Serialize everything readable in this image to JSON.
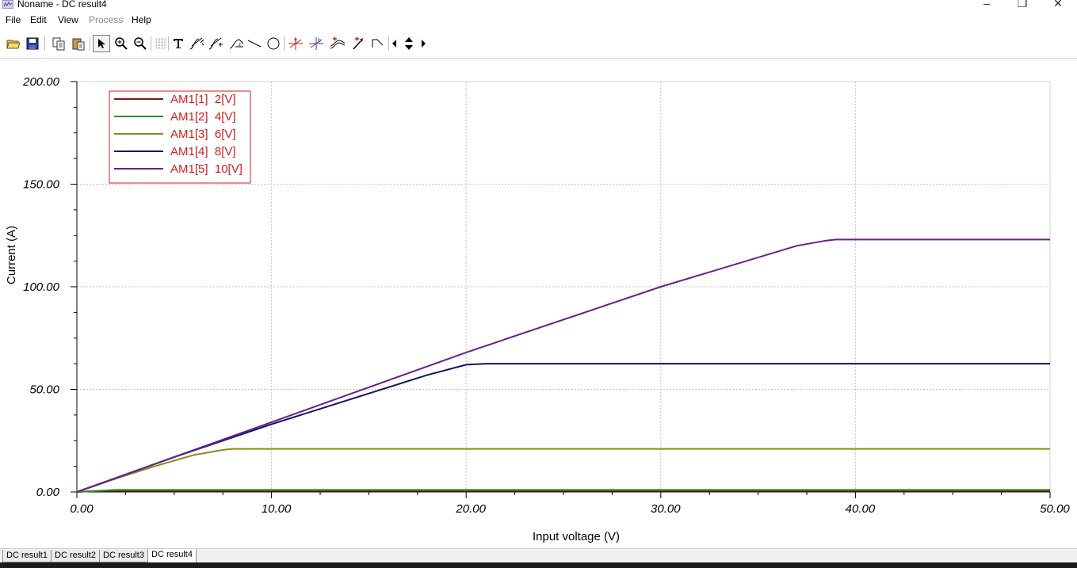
{
  "window": {
    "title": "Noname - DC result4",
    "controls": [
      "–",
      "❐",
      "✕"
    ]
  },
  "menu": [
    {
      "label": "File",
      "enabled": true
    },
    {
      "label": "Edit",
      "enabled": true
    },
    {
      "label": "View",
      "enabled": true
    },
    {
      "label": "Process",
      "enabled": false
    },
    {
      "label": "Help",
      "enabled": true
    }
  ],
  "toolbar": {
    "icons": [
      "open-folder-icon",
      "save-icon",
      "copy-icon",
      "paste-icon",
      "pointer-icon",
      "zoom-in-icon",
      "zoom-out-icon",
      "grid-icon",
      "text-tool-icon",
      "curve-tool-1-icon",
      "curve-tool-2-icon",
      "curve-tool-3-icon",
      "line-tool-icon",
      "circle-tool-icon",
      "marker-a-icon",
      "marker-b-icon",
      "add-trace-icon",
      "probe-icon",
      "slope-icon",
      "arrow-left-icon",
      "arrow-updown-icon",
      "arrow-right-icon"
    ]
  },
  "chart_data": {
    "type": "line",
    "title": "",
    "xlabel": "Input voltage (V)",
    "ylabel": "Current (A)",
    "xlim": [
      0,
      50
    ],
    "ylim": [
      0,
      200
    ],
    "xticks": [
      "0.00",
      "10.00",
      "20.00",
      "30.00",
      "40.00",
      "50.00"
    ],
    "yticks": [
      "0.00",
      "50.00",
      "100.00",
      "150.00",
      "200.00"
    ],
    "grid": true,
    "legend_position": "top-left",
    "series": [
      {
        "name": "AM1[1]  2[V]",
        "color": "#7a1a1a",
        "x": [
          0,
          1,
          50
        ],
        "y": [
          0,
          0.5,
          0.5
        ]
      },
      {
        "name": "AM1[2]  4[V]",
        "color": "#2e8b2e",
        "x": [
          0,
          2,
          50
        ],
        "y": [
          0,
          1,
          1
        ]
      },
      {
        "name": "AM1[3]  6[V]",
        "color": "#8c8c1a",
        "x": [
          0,
          2,
          4,
          6,
          7.5,
          8,
          50
        ],
        "y": [
          0,
          6.5,
          12.5,
          18,
          20.5,
          21,
          21
        ]
      },
      {
        "name": "AM1[4]  8[V]",
        "color": "#14145e",
        "x": [
          0,
          5,
          10,
          15,
          18,
          20,
          21,
          50
        ],
        "y": [
          0,
          17,
          33,
          48,
          57,
          62,
          62.5,
          62.5
        ]
      },
      {
        "name": "AM1[5]  10[V]",
        "color": "#6a1f8a",
        "x": [
          0,
          10,
          20,
          30,
          37,
          38.5,
          39,
          50
        ],
        "y": [
          0,
          34,
          68,
          100,
          120,
          122.5,
          123,
          123
        ]
      }
    ]
  },
  "tabs": [
    {
      "label": "DC result1",
      "active": false
    },
    {
      "label": "DC result2",
      "active": false
    },
    {
      "label": "DC result3",
      "active": false
    },
    {
      "label": "DC result4",
      "active": true
    }
  ]
}
